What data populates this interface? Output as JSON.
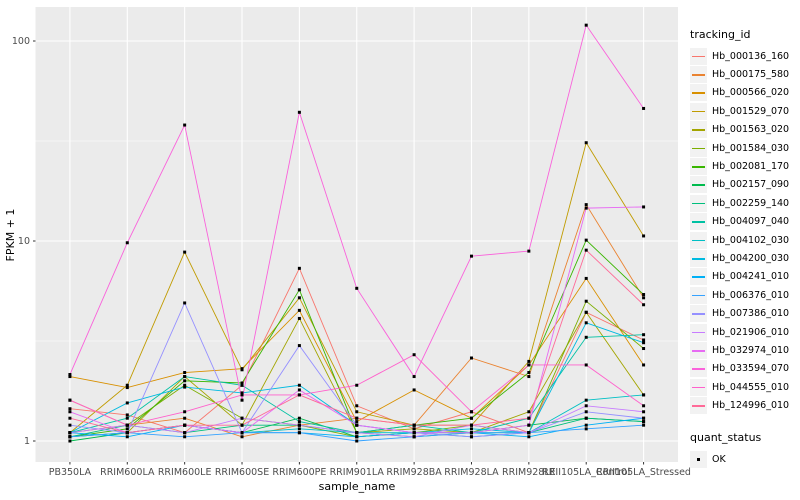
{
  "chart_data": {
    "type": "line",
    "xlabel": "sample_name",
    "ylabel": "FPKM + 1",
    "y_scale": "log10",
    "y_major_ticks": [
      1,
      10,
      100
    ],
    "y_tick_labels": [
      "1",
      "10",
      "100"
    ],
    "y_minor_ticks": [
      3.162,
      31.623
    ],
    "ylim": [
      0.79,
      146
    ],
    "grid": true,
    "panel_bg": "#EBEBEB",
    "grid_color": "#FFFFFF",
    "tick_label_color": "#4D4D4D",
    "axis_title_color": "#000000",
    "point_color": "#000000",
    "point_shape": "square",
    "categories": [
      "PB350LA",
      "RRIM600LA",
      "RRIM600LE",
      "RRIM600SE",
      "RRIM600PE",
      "RRIM901LA",
      "RRIM928BA",
      "RRIM928LA",
      "RRIM928LE",
      "RRII105LA_Control",
      "RRII105LA_Stressed"
    ],
    "series": [
      {
        "name": "Hb_000136_160",
        "color": "#F8766D",
        "values": [
          1.45,
          1.35,
          1.1,
          1.9,
          7.3,
          1.5,
          1.15,
          1.4,
          1.1,
          4.4,
          3.2
        ]
      },
      {
        "name": "Hb_000175_580",
        "color": "#EA8331",
        "values": [
          1.6,
          1.2,
          1.3,
          1.05,
          1.2,
          1.3,
          1.2,
          2.6,
          2.1,
          15.2,
          5.2
        ]
      },
      {
        "name": "Hb_000566_020",
        "color": "#D89000",
        "values": [
          2.1,
          1.85,
          2.2,
          2.3,
          4.5,
          1.25,
          1.8,
          1.3,
          2.4,
          6.5,
          2.4
        ]
      },
      {
        "name": "Hb_001529_070",
        "color": "#C09B00",
        "values": [
          1.1,
          1.9,
          8.8,
          2.27,
          5.2,
          1.4,
          1.2,
          1.2,
          2.5,
          31,
          10.6
        ]
      },
      {
        "name": "Hb_001563_020",
        "color": "#A3A500",
        "values": [
          1.05,
          1.1,
          2.1,
          1.2,
          4.1,
          1.1,
          1.15,
          1.1,
          1.4,
          4.4,
          1.7
        ]
      },
      {
        "name": "Hb_001584_030",
        "color": "#7CAE00",
        "values": [
          1.1,
          1.2,
          1.9,
          1.3,
          1.2,
          1.05,
          1.1,
          1.2,
          1.1,
          5.0,
          2.9
        ]
      },
      {
        "name": "Hb_002081_170",
        "color": "#39B600",
        "values": [
          1.05,
          1.15,
          2.0,
          1.95,
          5.7,
          1.1,
          1.2,
          1.3,
          2.2,
          10.1,
          5.4
        ]
      },
      {
        "name": "Hb_002157_090",
        "color": "#00BB4E",
        "values": [
          1.0,
          1.1,
          1.2,
          1.1,
          1.3,
          1.05,
          1.1,
          1.1,
          1.2,
          1.3,
          1.25
        ]
      },
      {
        "name": "Hb_002259_140",
        "color": "#00BF7D",
        "values": [
          1.05,
          1.2,
          1.1,
          1.2,
          1.2,
          1.1,
          1.05,
          1.1,
          1.1,
          1.3,
          1.25
        ]
      },
      {
        "name": "Hb_004097_040",
        "color": "#00C1A3",
        "values": [
          1.1,
          1.3,
          2.1,
          1.9,
          1.25,
          1.1,
          1.2,
          1.1,
          1.3,
          3.3,
          3.4
        ]
      },
      {
        "name": "Hb_004102_030",
        "color": "#00BFC4",
        "values": [
          1.05,
          1.1,
          1.2,
          1.1,
          1.15,
          1.1,
          1.1,
          1.05,
          1.1,
          1.6,
          1.7
        ]
      },
      {
        "name": "Hb_004200_030",
        "color": "#00BAE0",
        "values": [
          1.1,
          1.55,
          1.86,
          1.74,
          1.9,
          1.2,
          1.1,
          1.15,
          1.1,
          3.9,
          3.1
        ]
      },
      {
        "name": "Hb_004241_010",
        "color": "#00B0F6",
        "values": [
          1.1,
          1.05,
          1.2,
          1.1,
          1.1,
          1.05,
          1.1,
          1.1,
          1.05,
          1.2,
          1.3
        ]
      },
      {
        "name": "Hb_006376_010",
        "color": "#35A2FF",
        "values": [
          1.05,
          1.1,
          1.05,
          1.1,
          1.1,
          1.0,
          1.05,
          1.1,
          1.1,
          1.15,
          1.2
        ]
      },
      {
        "name": "Hb_007386_010",
        "color": "#9590FF",
        "values": [
          1.2,
          1.1,
          4.9,
          1.1,
          3.0,
          1.2,
          1.1,
          1.05,
          1.1,
          1.4,
          1.3
        ]
      },
      {
        "name": "Hb_021906_010",
        "color": "#C77CFF",
        "values": [
          1.1,
          1.2,
          1.1,
          1.3,
          1.2,
          1.1,
          1.05,
          1.2,
          1.1,
          1.5,
          1.4
        ]
      },
      {
        "name": "Hb_032974_010",
        "color": "#E76BF3",
        "values": [
          1.4,
          1.1,
          1.2,
          1.1,
          1.8,
          1.2,
          1.1,
          1.1,
          1.2,
          14.6,
          14.8
        ]
      },
      {
        "name": "Hb_033594_070",
        "color": "#FA62DB",
        "values": [
          2.15,
          9.8,
          38,
          1.6,
          44,
          5.8,
          2.1,
          8.4,
          8.9,
          120,
          46
        ]
      },
      {
        "name": "Hb_044555_010",
        "color": "#FF61CC",
        "values": [
          1.6,
          1.2,
          1.4,
          1.7,
          1.7,
          1.9,
          2.7,
          1.4,
          2.4,
          2.4,
          1.5
        ]
      },
      {
        "name": "Hb_124996_010",
        "color": "#FF6A98",
        "values": [
          1.3,
          1.1,
          1.2,
          1.2,
          1.7,
          1.3,
          1.2,
          1.2,
          1.3,
          9.0,
          4.8
        ]
      }
    ],
    "legend": {
      "tracking_title": "tracking_id",
      "quant_title": "quant_status",
      "quant_items": [
        {
          "label": "OK",
          "marker": "black-square"
        }
      ],
      "position": "right",
      "key_bg": "#F2F2F2"
    }
  }
}
